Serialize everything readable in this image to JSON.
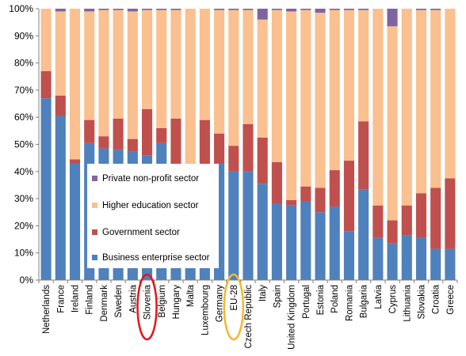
{
  "chart_data": {
    "type": "bar",
    "stacked": true,
    "title": "",
    "xlabel": "",
    "ylabel": "",
    "ylim": [
      0,
      100
    ],
    "y_ticks": [
      "0%",
      "10%",
      "20%",
      "30%",
      "40%",
      "50%",
      "60%",
      "70%",
      "80%",
      "90%",
      "100%"
    ],
    "grid": false,
    "legend_position": "left-center inside plot",
    "categories": [
      "Netherlands",
      "France",
      "Ireland",
      "Finland",
      "Denmark",
      "Sweden",
      "Austria",
      "Slovenia",
      "Belgium",
      "Hungary",
      "Malta",
      "Luxembourg",
      "Germany",
      "EU-28",
      "Czech Republic",
      "Italy",
      "Spain",
      "United Kingdom",
      "Portugal",
      "Estonia",
      "Poland",
      "Romania",
      "Bulgaria",
      "Latvia",
      "Cyprus",
      "Lithuania",
      "Slovakia",
      "Croatia",
      "Greece"
    ],
    "series": [
      {
        "name": "Business enterprise sector",
        "color": "#4F81BD",
        "values": [
          67,
          60.5,
          43,
          50.5,
          48.5,
          48,
          47.5,
          46,
          50.5,
          42.5,
          42,
          42.5,
          43,
          40,
          40,
          35.5,
          28,
          27.5,
          29,
          25,
          27,
          18,
          33.5,
          15.5,
          13.5,
          16.5,
          15.5,
          11.5,
          11.5
        ]
      },
      {
        "name": "Government sector",
        "color": "#C0504D",
        "values": [
          10,
          7.5,
          1.5,
          8.5,
          4.5,
          11.5,
          4.5,
          17,
          5.5,
          17,
          0,
          16.5,
          11,
          9.5,
          17.5,
          17,
          15.5,
          2,
          5.5,
          9,
          13.5,
          26,
          25,
          12,
          8.5,
          11,
          16.5,
          22.5,
          26
        ]
      },
      {
        "name": "Higher education sector",
        "color": "#FAC090",
        "values": [
          23,
          31,
          55.5,
          40,
          46.5,
          40,
          47,
          36.5,
          43.5,
          40,
          58,
          41,
          45.5,
          50,
          42,
          43.5,
          56,
          69.5,
          65,
          64.5,
          59,
          55.5,
          41,
          72.5,
          71.5,
          72.5,
          67.5,
          65.5,
          62.5
        ]
      },
      {
        "name": "Private non-profit sector",
        "color": "#8064A2",
        "values": [
          0,
          1,
          0,
          1,
          0.5,
          0.5,
          1,
          0.5,
          0.5,
          0.5,
          0,
          0,
          0.5,
          0.5,
          0.5,
          4,
          0.5,
          1,
          0.5,
          1.5,
          0.5,
          0.5,
          0.5,
          0,
          6.5,
          0,
          0.5,
          0.5,
          0
        ]
      }
    ],
    "highlighted_categories": [
      {
        "category": "Slovenia",
        "color": "#E8141B"
      },
      {
        "category": "EU-28",
        "color": "#F5B82E"
      }
    ],
    "legend_order": [
      "Private non-profit sector",
      "Higher education sector",
      "Government sector",
      "Business enterprise sector"
    ]
  }
}
